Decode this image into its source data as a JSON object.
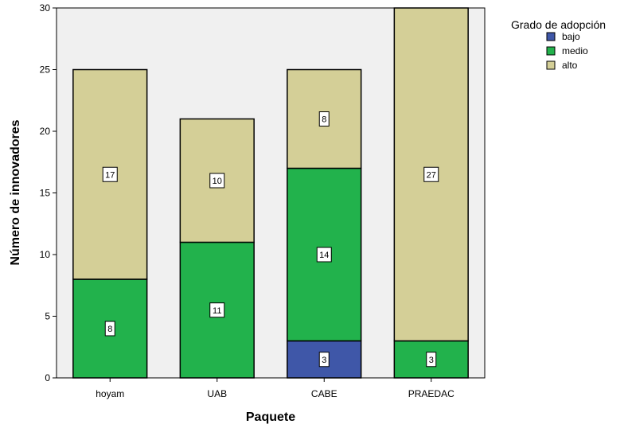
{
  "chart_data": {
    "type": "bar",
    "stacked": true,
    "categories": [
      "hoyam",
      "UAB",
      "CABE",
      "PRAEDAC"
    ],
    "series": [
      {
        "name": "bajo",
        "values": [
          0,
          0,
          3,
          0
        ],
        "color": "#3f57a8"
      },
      {
        "name": "medio",
        "values": [
          8,
          11,
          14,
          3
        ],
        "color": "#22b24c"
      },
      {
        "name": "alto",
        "values": [
          17,
          10,
          8,
          27
        ],
        "color": "#d4cf97"
      }
    ],
    "title": "",
    "xlabel": "Paquete",
    "ylabel": "Número de innovadores",
    "ylim": [
      0,
      30
    ],
    "yticks": [
      0,
      5,
      10,
      15,
      20,
      25,
      30
    ],
    "grid": false,
    "plot_background": "#f0f0f0",
    "legend": {
      "title": "Grado de adopción",
      "position": "top-right"
    }
  }
}
